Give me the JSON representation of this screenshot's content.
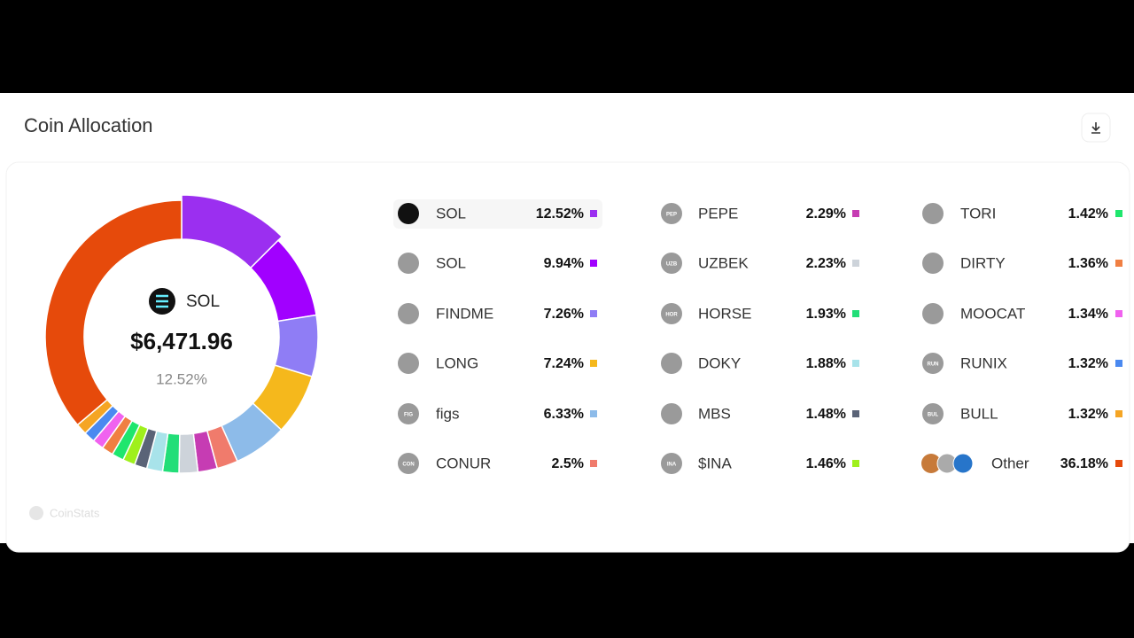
{
  "chart_data": {
    "type": "pie",
    "title": "Coin Allocation",
    "center": {
      "name": "SOL",
      "value_label": "$6,471.96",
      "percent_label": "12.52%"
    },
    "categories": [
      "SOL",
      "SOL",
      "FINDME",
      "LONG",
      "figs",
      "CONUR",
      "PEPE",
      "UZBEK",
      "HORSE",
      "DOKY",
      "MBS",
      "$INA",
      "TORI",
      "DIRTY",
      "MOOCAT",
      "RUNIX",
      "BULL",
      "Other"
    ],
    "values": [
      12.52,
      9.94,
      7.26,
      7.24,
      6.33,
      2.5,
      2.29,
      2.23,
      1.93,
      1.88,
      1.48,
      1.46,
      1.42,
      1.36,
      1.34,
      1.32,
      1.32,
      36.18
    ],
    "value_labels": [
      "12.52%",
      "9.94%",
      "7.26%",
      "7.24%",
      "6.33%",
      "2.5%",
      "2.29%",
      "2.23%",
      "1.93%",
      "1.88%",
      "1.48%",
      "1.46%",
      "1.42%",
      "1.36%",
      "1.34%",
      "1.32%",
      "1.32%",
      "36.18%"
    ],
    "colors": [
      "#9b2ff0",
      "#a100ff",
      "#8f7df5",
      "#f5b81c",
      "#8dbbe9",
      "#f07b6c",
      "#c63cb3",
      "#cdd3da",
      "#22de78",
      "#a8e3ea",
      "#5a6377",
      "#9ff01c",
      "#1fe66d",
      "#f07f42",
      "#f062ef",
      "#4a89f0",
      "#f5a524",
      "#e64a0b"
    ],
    "icon_labels": [
      null,
      null,
      null,
      null,
      "FIG",
      "CON",
      "PEP",
      "UZB",
      "HOR",
      null,
      null,
      "INA",
      null,
      null,
      null,
      "RUN",
      "BUL",
      null
    ]
  },
  "watermark": "CoinStats"
}
